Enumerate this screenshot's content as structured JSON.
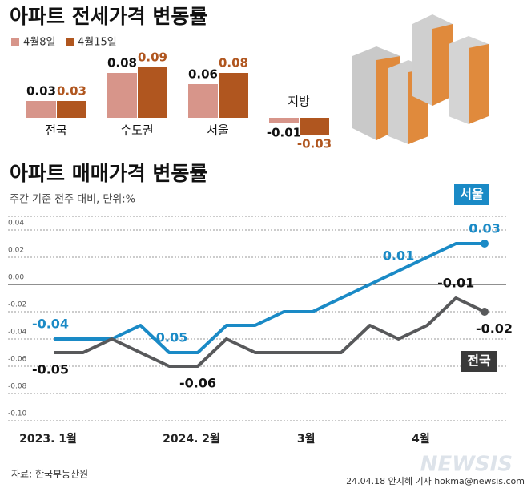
{
  "chart_data": [
    {
      "type": "bar",
      "title": "아파트 전세가격 변동률",
      "categories": [
        "전국",
        "수도권",
        "서울",
        "지방"
      ],
      "series": [
        {
          "name": "4월8일",
          "color": "#d7958a",
          "values": [
            0.03,
            0.08,
            0.06,
            -0.01
          ]
        },
        {
          "name": "4월15일",
          "color": "#b0561f",
          "values": [
            0.03,
            0.09,
            0.08,
            -0.03
          ]
        }
      ]
    },
    {
      "type": "line",
      "title": "아파트 매매가격 변동률",
      "subtitle": "주간 기준 전주 대비, 단위:%",
      "categories": [
        "2023. 1월",
        null,
        null,
        null,
        null,
        "2024. 2월",
        null,
        null,
        null,
        "3월",
        null,
        null,
        null,
        "4월",
        null,
        null
      ],
      "series": [
        {
          "name": "서울",
          "color": "#1a8ac6",
          "values": [
            -0.04,
            -0.04,
            -0.04,
            -0.03,
            -0.05,
            -0.05,
            -0.03,
            -0.03,
            -0.02,
            -0.02,
            -0.01,
            0.0,
            0.01,
            0.02,
            0.03,
            0.03
          ],
          "value_labels": [
            "-0.04",
            null,
            null,
            null,
            "-0.05",
            null,
            null,
            null,
            null,
            null,
            null,
            null,
            "0.01",
            null,
            null,
            "0.03"
          ]
        },
        {
          "name": "전국",
          "color": "#58595b",
          "values": [
            -0.05,
            -0.05,
            -0.04,
            -0.05,
            -0.06,
            -0.06,
            -0.04,
            -0.05,
            -0.05,
            -0.05,
            -0.05,
            -0.03,
            -0.04,
            -0.03,
            -0.01,
            -0.02
          ],
          "value_labels": [
            "-0.05",
            null,
            null,
            null,
            null,
            "-0.06",
            null,
            null,
            null,
            null,
            null,
            null,
            null,
            null,
            "-0.01",
            "-0.02"
          ]
        }
      ],
      "ylim": [
        -0.1,
        0.05
      ],
      "yticks": [
        0.04,
        0.02,
        {
          "value": 0,
          "label": "0.00"
        },
        -0.02,
        -0.04,
        -0.06,
        -0.08,
        {
          "value": -0.1,
          "label": "-0.10"
        }
      ],
      "grid": true
    }
  ],
  "source": "자료: 한국부동산원",
  "credit": "24.04.18  안지혜 기자  hokma@newsis.com",
  "logo": "NEWSIS"
}
